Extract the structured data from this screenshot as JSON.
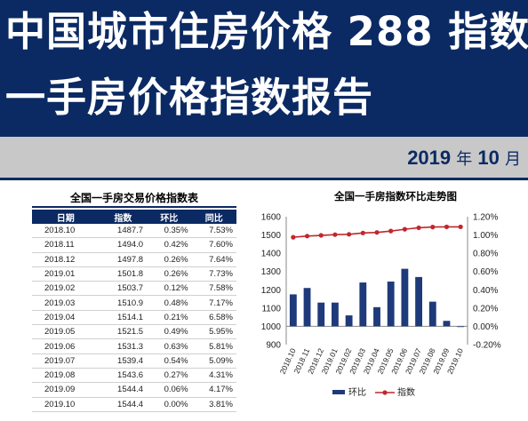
{
  "header": {
    "title_line1": "中国城市住房价格 288 指数",
    "title_line2": "一手房价格指数报告",
    "date_year": "2019",
    "date_year_char": "年",
    "date_month": "10",
    "date_month_char": "月"
  },
  "table": {
    "title": "全国一手房交易价格指数表",
    "headers": [
      "日期",
      "指数",
      "环比",
      "同比"
    ],
    "rows": [
      [
        "2018.10",
        "1487.7",
        "0.35%",
        "7.53%"
      ],
      [
        "2018.11",
        "1494.0",
        "0.42%",
        "7.60%"
      ],
      [
        "2018.12",
        "1497.8",
        "0.26%",
        "7.64%"
      ],
      [
        "2019.01",
        "1501.8",
        "0.26%",
        "7.73%"
      ],
      [
        "2019.02",
        "1503.7",
        "0.12%",
        "7.58%"
      ],
      [
        "2019.03",
        "1510.9",
        "0.48%",
        "7.17%"
      ],
      [
        "2019.04",
        "1514.1",
        "0.21%",
        "6.58%"
      ],
      [
        "2019.05",
        "1521.5",
        "0.49%",
        "5.95%"
      ],
      [
        "2019.06",
        "1531.3",
        "0.63%",
        "5.81%"
      ],
      [
        "2019.07",
        "1539.4",
        "0.54%",
        "5.09%"
      ],
      [
        "2019.08",
        "1543.6",
        "0.27%",
        "4.31%"
      ],
      [
        "2019.09",
        "1544.4",
        "0.06%",
        "4.17%"
      ],
      [
        "2019.10",
        "1544.4",
        "0.00%",
        "3.81%"
      ]
    ]
  },
  "chart_data": {
    "type": "bar+line",
    "title": "全国一手房指数环比走势图",
    "categories": [
      "2018.10",
      "2018.11",
      "2018.12",
      "2019.01",
      "2019.02",
      "2019.03",
      "2019.04",
      "2019.05",
      "2019.06",
      "2019.07",
      "2019.08",
      "2019.09",
      "2019.10"
    ],
    "series": [
      {
        "name": "环比",
        "type": "bar",
        "axis": "right",
        "color": "#1f3a7a",
        "values": [
          0.35,
          0.42,
          0.26,
          0.26,
          0.12,
          0.48,
          0.21,
          0.49,
          0.63,
          0.54,
          0.27,
          0.06,
          0.0
        ]
      },
      {
        "name": "指数",
        "type": "line",
        "axis": "left",
        "color": "#c0272d",
        "values": [
          1487.7,
          1494.0,
          1497.8,
          1501.8,
          1503.7,
          1510.9,
          1514.1,
          1521.5,
          1531.3,
          1539.4,
          1543.6,
          1544.4,
          1544.4
        ]
      }
    ],
    "left_axis": {
      "min": 900,
      "max": 1600,
      "ticks": [
        "1600",
        "1500",
        "1400",
        "1300",
        "1200",
        "1100",
        "1000",
        "900"
      ]
    },
    "right_axis": {
      "min": -0.2,
      "max": 1.2,
      "ticks": [
        "1.20%",
        "1.00%",
        "0.80%",
        "0.60%",
        "0.40%",
        "0.20%",
        "0.00%",
        "-0.20%"
      ]
    },
    "legend_position": "bottom",
    "grid": false
  }
}
